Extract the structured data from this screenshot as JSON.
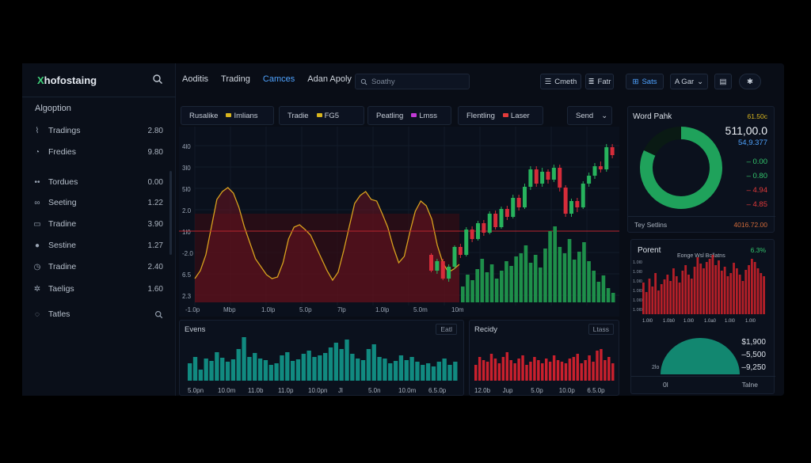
{
  "app": {
    "logo_x": "X",
    "logo_rest": "hofostaing"
  },
  "sidebar": {
    "section": "Algoption",
    "items": [
      {
        "icon": "chart-icon",
        "glyph": "⌇",
        "label": "Tradings",
        "value": "2.80"
      },
      {
        "icon": "gauge-icon",
        "glyph": "◔",
        "label": "Fredies",
        "value": "9.80"
      },
      {
        "icon": "dots-icon",
        "glyph": "••",
        "label": "Tordues",
        "value": "0.00"
      },
      {
        "icon": "link-icon",
        "glyph": "∞",
        "label": "Seeting",
        "value": "1.22"
      },
      {
        "icon": "card-icon",
        "glyph": "▭",
        "label": "Tradine",
        "value": "3.90"
      },
      {
        "icon": "circle-icon",
        "glyph": "●",
        "label": "Sestine",
        "value": "1.27"
      },
      {
        "icon": "clock-icon",
        "glyph": "◷",
        "label": "Tradine",
        "value": "2.40"
      },
      {
        "icon": "gear-icon",
        "glyph": "✲",
        "label": "Taeligs",
        "value": "1.60"
      },
      {
        "icon": "info-icon",
        "glyph": "◌",
        "label": "Tatles",
        "value": ""
      }
    ]
  },
  "topnav": {
    "items": [
      {
        "label": "Aoditis",
        "active": false
      },
      {
        "label": "Trading",
        "active": false
      },
      {
        "label": "Camces",
        "active": true
      },
      {
        "label": "Adan Apoly",
        "active": false
      }
    ],
    "search_placeholder": "Soathy",
    "btn_cmeth": "Cmeth",
    "btn_fatr": "Fatr",
    "btn_sats": "Sats",
    "btn_agar": "A Gar"
  },
  "pills": [
    {
      "label": "Rusalike",
      "tag": "Imlians",
      "color": "#d8b51e"
    },
    {
      "label": "Tradie",
      "tag": "FG5",
      "color": "#d8b51e"
    },
    {
      "label": "Peatling",
      "tag": "Lmss",
      "color": "#c13ad6"
    },
    {
      "label": "Flentling",
      "tag": "Laser",
      "color": "#e33b3b"
    }
  ],
  "send_label": "Send",
  "chart_data": [
    {
      "type": "line",
      "name": "main",
      "y_ticks": [
        "4l0",
        "3l0",
        "5l0",
        "2.0",
        "1l0",
        "-2.0",
        "6.5",
        "2.3"
      ],
      "x_ticks": [
        "-1.0p",
        "Mbp",
        "1.0lp",
        "5.0p",
        "7lp",
        "1.0lp",
        "5.0m",
        "10m"
      ],
      "line": [
        30,
        40,
        60,
        95,
        130,
        140,
        145,
        138,
        120,
        95,
        75,
        55,
        45,
        35,
        30,
        32,
        50,
        80,
        95,
        98,
        92,
        85,
        70,
        55,
        40,
        28,
        38,
        65,
        95,
        125,
        135,
        140,
        130,
        128,
        112,
        95,
        70,
        50,
        58,
        88,
        115,
        128,
        122,
        105,
        72,
        50,
        38,
        42,
        48
      ],
      "candles": [
        [
          60,
          40,
          62,
          38
        ],
        [
          40,
          52,
          55,
          36
        ],
        [
          52,
          30,
          55,
          28
        ],
        [
          30,
          45,
          48,
          26
        ],
        [
          45,
          70,
          72,
          42
        ],
        [
          70,
          60,
          74,
          56
        ],
        [
          60,
          92,
          95,
          58
        ],
        [
          92,
          80,
          96,
          76
        ],
        [
          80,
          100,
          103,
          78
        ],
        [
          100,
          88,
          104,
          84
        ],
        [
          88,
          112,
          115,
          86
        ],
        [
          112,
          95,
          116,
          92
        ],
        [
          95,
          118,
          121,
          93
        ],
        [
          118,
          108,
          122,
          104
        ],
        [
          108,
          132,
          136,
          106
        ],
        [
          132,
          120,
          136,
          116
        ],
        [
          120,
          146,
          150,
          118
        ],
        [
          146,
          168,
          172,
          142
        ],
        [
          168,
          150,
          172,
          146
        ],
        [
          150,
          165,
          170,
          146
        ],
        [
          165,
          155,
          168,
          150
        ],
        [
          155,
          170,
          174,
          152
        ],
        [
          170,
          145,
          174,
          140
        ],
        [
          145,
          112,
          148,
          108
        ],
        [
          112,
          128,
          131,
          108
        ],
        [
          128,
          120,
          132,
          114
        ],
        [
          120,
          150,
          153,
          118
        ],
        [
          150,
          160,
          164,
          146
        ],
        [
          160,
          172,
          176,
          156
        ],
        [
          172,
          168,
          178,
          164
        ],
        [
          168,
          196,
          200,
          165
        ],
        [
          196,
          186,
          200,
          182
        ]
      ],
      "volume": [
        20,
        35,
        28,
        42,
        55,
        38,
        48,
        30,
        40,
        52,
        46,
        58,
        62,
        72,
        50,
        60,
        44,
        68,
        90,
        96,
        70,
        62,
        80,
        54,
        64,
        76,
        52,
        40,
        26,
        34,
        18,
        12
      ]
    },
    {
      "type": "pie",
      "name": "donut",
      "values": [
        82,
        18
      ],
      "colors": [
        "#1fa25b",
        "#0a1a14"
      ]
    },
    {
      "type": "bar",
      "name": "evens",
      "x_ticks": [
        "5.0pn",
        "10.0m",
        "11.0b",
        "11.0p",
        "10.0pn",
        "Jl",
        "5.0n",
        "10.0m",
        "6.5.0p"
      ],
      "values": [
        22,
        30,
        14,
        28,
        25,
        36,
        29,
        24,
        27,
        40,
        55,
        30,
        35,
        28,
        26,
        20,
        22,
        32,
        36,
        25,
        27,
        34,
        38,
        30,
        32,
        35,
        42,
        48,
        40,
        52,
        34,
        28,
        26,
        40,
        46,
        30,
        28,
        22,
        25,
        32,
        26,
        30,
        24,
        20,
        22,
        18,
        24,
        28,
        20,
        24
      ]
    },
    {
      "type": "bar",
      "name": "recidy",
      "x_ticks": [
        "12.0b",
        "Jup",
        "5.0p",
        "10.0p",
        "6.5.0p"
      ],
      "values": [
        20,
        30,
        26,
        24,
        34,
        28,
        22,
        30,
        36,
        26,
        22,
        28,
        32,
        20,
        24,
        30,
        26,
        22,
        28,
        24,
        32,
        26,
        24,
        22,
        28,
        30,
        34,
        22,
        26,
        32,
        24,
        38,
        40,
        26,
        30,
        22
      ]
    },
    {
      "type": "bar",
      "name": "porent",
      "x_ticks": [
        "1.0l0",
        "1.0b0",
        "1.0l0",
        "1.0a0",
        "1.0l0",
        "1.0l0"
      ],
      "values": [
        40,
        28,
        45,
        35,
        52,
        30,
        38,
        44,
        50,
        42,
        58,
        48,
        40,
        55,
        62,
        50,
        45,
        60,
        72,
        64,
        58,
        66,
        70,
        75,
        62,
        68,
        55,
        60,
        48,
        52,
        65,
        58,
        50,
        42,
        56,
        62,
        70,
        66,
        58,
        52,
        48
      ]
    },
    {
      "type": "pie",
      "name": "gauge",
      "values": [
        100
      ],
      "colors": [
        "#128770"
      ]
    }
  ],
  "right": {
    "title1": "Word Pahk",
    "title1_val": "61.50c",
    "big_value": "511,00.0",
    "sub_value": "54,9.377",
    "stats": [
      {
        "sign": "–",
        "value": "0.00",
        "color": "#33c46c"
      },
      {
        "sign": "–",
        "value": "0.80",
        "color": "#33c46c"
      },
      {
        "sign": "–",
        "value": "4.94",
        "color": "#e03a3a"
      },
      {
        "sign": "–",
        "value": "4.85",
        "color": "#e03a3a"
      }
    ],
    "foot_left": "Tey Setlins",
    "foot_right": "4016.72.00",
    "title2": "Porent",
    "title2_val": "6.3%",
    "subtitle2": "Eonge Wsl Bollatns",
    "y_ticks2": [
      "1.0l0",
      "1.0l0",
      "1.0l0",
      "1.0l0",
      "1.0l0",
      "1.0l0"
    ],
    "gauge_vals": [
      {
        "value": "$1,900",
        "color": "#dce2ea"
      },
      {
        "value": "–5,500",
        "color": "#dce2ea"
      },
      {
        "value": "–9,250",
        "color": "#dce2ea"
      }
    ],
    "gauge_low": "2lo",
    "gauge_foot_left": "0l",
    "gauge_foot_right": "Talne"
  },
  "bottom": {
    "title1": "Evens",
    "btn1": "Eatl",
    "title2": "Recidy",
    "btn2": "Ltass"
  }
}
